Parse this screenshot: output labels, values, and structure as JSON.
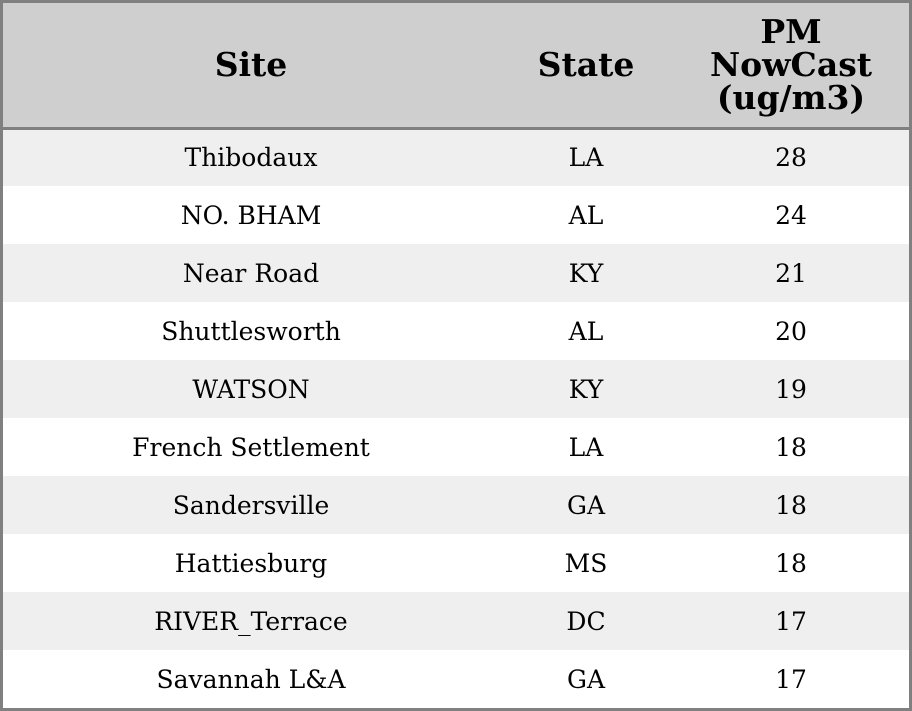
{
  "chart_data": {
    "type": "table",
    "columns": [
      "Site",
      "State",
      "PM NowCast (ug/m3)"
    ],
    "header_lines": {
      "site": [
        "Site"
      ],
      "state": [
        "State"
      ],
      "pm": [
        "PM",
        "NowCast",
        "(ug/m3)"
      ]
    },
    "rows": [
      {
        "site": "Thibodaux",
        "state": "LA",
        "pm": "28"
      },
      {
        "site": "NO. BHAM",
        "state": "AL",
        "pm": "24"
      },
      {
        "site": "Near Road",
        "state": "KY",
        "pm": "21"
      },
      {
        "site": "Shuttlesworth",
        "state": "AL",
        "pm": "20"
      },
      {
        "site": "WATSON",
        "state": "KY",
        "pm": "19"
      },
      {
        "site": "French Settlement",
        "state": "LA",
        "pm": "18"
      },
      {
        "site": "Sandersville",
        "state": "GA",
        "pm": "18"
      },
      {
        "site": "Hattiesburg",
        "state": "MS",
        "pm": "18"
      },
      {
        "site": "RIVER_Terrace",
        "state": "DC",
        "pm": "17"
      },
      {
        "site": "Savannah L&A",
        "state": "GA",
        "pm": "17"
      }
    ]
  },
  "colors": {
    "header_bg": "#cfcfcf",
    "row_alt_bg": "#efefef",
    "row_bg": "#ffffff",
    "border": "#808080"
  }
}
